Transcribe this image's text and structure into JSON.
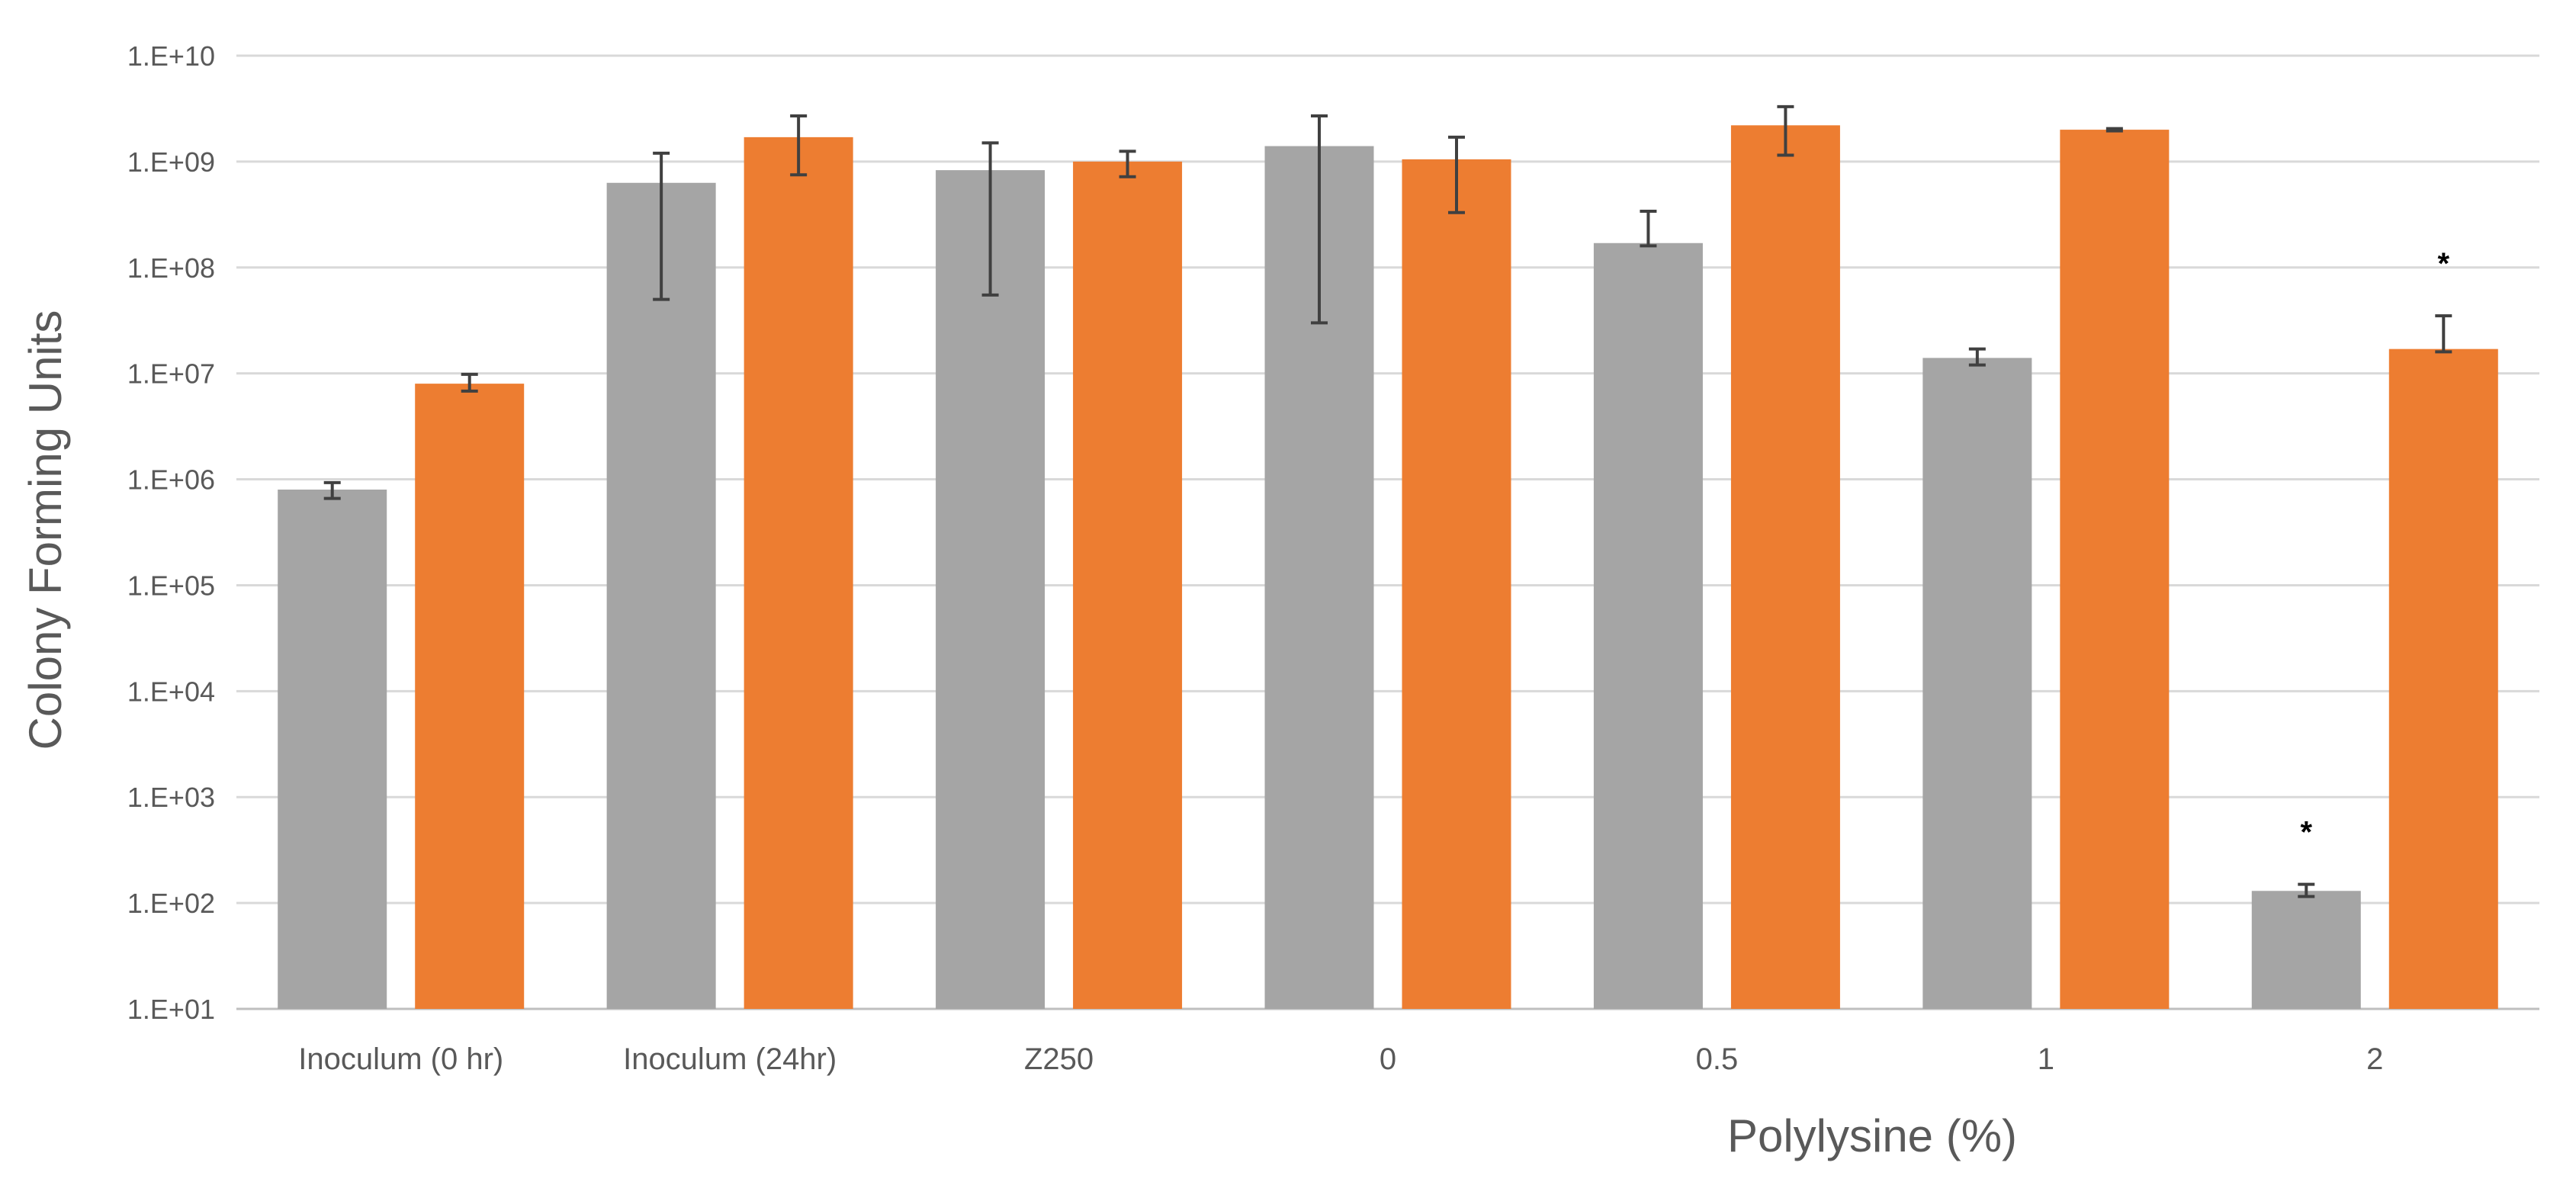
{
  "chart_data": {
    "type": "bar",
    "title": "",
    "ylabel": "Colony Forming Units",
    "xlabel": "Polylysine (%)",
    "yscale": "log",
    "ylim": [
      10,
      10000000000
    ],
    "yticks": [
      "1.E+01",
      "1.E+02",
      "1.E+03",
      "1.E+04",
      "1.E+05",
      "1.E+06",
      "1.E+07",
      "1.E+08",
      "1.E+09",
      "1.E+10"
    ],
    "grid": true,
    "legend": "none",
    "categories": [
      "Inoculum (0 hr)",
      "Inoculum (24hr)",
      "Z250",
      "0",
      "0.5",
      "1",
      "2"
    ],
    "series": [
      {
        "color": "#a5a5a5",
        "values": [
          800000,
          630000000,
          830000000,
          1400000000,
          170000000,
          14000000,
          130
        ],
        "err_low": [
          660000,
          50000000,
          55000000,
          30000000,
          160000000,
          12000000,
          115
        ],
        "err_high": [
          930000,
          1200000000,
          1500000000,
          2700000000,
          340000000,
          17000000,
          150
        ],
        "significance": [
          "",
          "",
          "",
          "",
          "",
          "",
          "*"
        ]
      },
      {
        "color": "#ed7d31",
        "values": [
          8000000,
          1700000000,
          1000000000,
          1050000000,
          2200000000,
          2000000000,
          17000000
        ],
        "err_low": [
          6800000,
          750000000,
          720000000,
          330000000,
          1150000000,
          1950000000,
          16000000
        ],
        "err_high": [
          9800000,
          2700000000,
          1250000000,
          1700000000,
          3300000000,
          2050000000,
          35000000
        ],
        "significance": [
          "",
          "",
          "",
          "",
          "",
          "",
          "*"
        ]
      }
    ]
  }
}
